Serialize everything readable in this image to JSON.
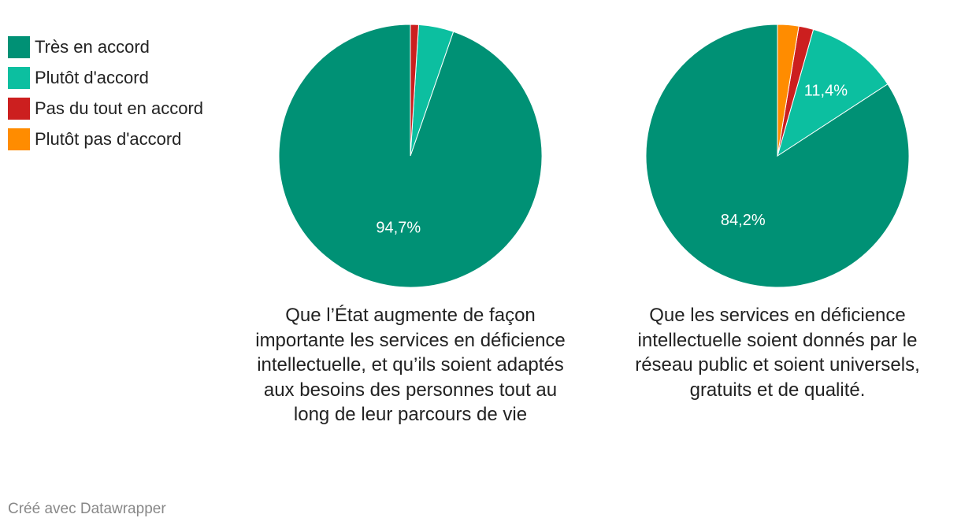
{
  "legend": [
    {
      "label": "Très en accord",
      "color": "#009175"
    },
    {
      "label": "Plutôt d'accord",
      "color": "#0cbfa0"
    },
    {
      "label": "Pas du tout en accord",
      "color": "#cc1f1f"
    },
    {
      "label": "Plutôt pas d'accord",
      "color": "#ff8c00"
    }
  ],
  "chart_data": [
    {
      "type": "pie",
      "title": "Que l’État augmente de façon importante les services en déficience intellectuelle, et qu’ils soient adaptés aux besoins des personnes tout au long de leur parcours de vie",
      "categories": [
        "Très en accord",
        "Plutôt d'accord",
        "Pas du tout en accord",
        "Plutôt pas d'accord"
      ],
      "values": [
        94.7,
        4.3,
        1.0,
        0.0
      ],
      "labels": [
        "94,7%",
        "",
        "",
        ""
      ]
    },
    {
      "type": "pie",
      "title": "Que les services en déficience intellectuelle soient donnés par le réseau public et soient universels, gratuits et de qualité.",
      "categories": [
        "Très en accord",
        "Plutôt d'accord",
        "Pas du tout en accord",
        "Plutôt pas d'accord"
      ],
      "values": [
        84.2,
        11.4,
        1.8,
        2.6
      ],
      "labels": [
        "84,2%",
        "11,4%",
        "",
        ""
      ]
    }
  ],
  "footer": {
    "text": "Créé avec Datawrapper"
  }
}
